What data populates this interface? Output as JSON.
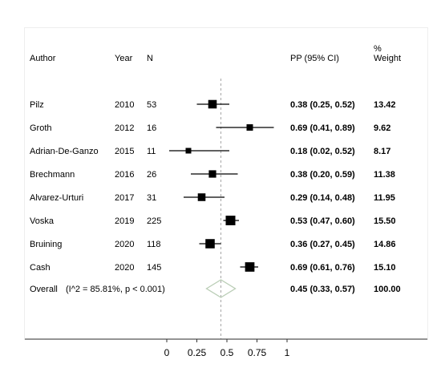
{
  "columns": {
    "author": "Author",
    "year": "Year",
    "n": "N",
    "pp": "PP (95% CI)",
    "weight_line1": "%",
    "weight_line2": "Weight"
  },
  "chart_data": {
    "type": "forest",
    "title": "",
    "xlabel": "",
    "ylabel": "",
    "xlim": [
      0,
      1
    ],
    "x_ticks": [
      "0",
      "0.25",
      "0.5",
      "0.75",
      "1"
    ],
    "x_tick_values": [
      0,
      0.25,
      0.5,
      0.75,
      1
    ],
    "reference_line": 0.45,
    "studies": [
      {
        "author": "Pilz",
        "year": "2010",
        "n": "53",
        "pp": 0.38,
        "lo": 0.25,
        "hi": 0.52,
        "ci_text": "0.38 (0.25, 0.52)",
        "weight": "13.42"
      },
      {
        "author": "Groth",
        "year": "2012",
        "n": "16",
        "pp": 0.69,
        "lo": 0.41,
        "hi": 0.89,
        "ci_text": "0.69 (0.41, 0.89)",
        "weight": "9.62"
      },
      {
        "author": "Adrian-De-Ganzo",
        "year": "2015",
        "n": "11",
        "pp": 0.18,
        "lo": 0.02,
        "hi": 0.52,
        "ci_text": "0.18 (0.02, 0.52)",
        "weight": "8.17"
      },
      {
        "author": "Brechmann",
        "year": "2016",
        "n": "26",
        "pp": 0.38,
        "lo": 0.2,
        "hi": 0.59,
        "ci_text": "0.38 (0.20, 0.59)",
        "weight": "11.38"
      },
      {
        "author": "Alvarez-Urturi",
        "year": "2017",
        "n": "31",
        "pp": 0.29,
        "lo": 0.14,
        "hi": 0.48,
        "ci_text": "0.29 (0.14, 0.48)",
        "weight": "11.95"
      },
      {
        "author": "Voska",
        "year": "2019",
        "n": "225",
        "pp": 0.53,
        "lo": 0.47,
        "hi": 0.6,
        "ci_text": "0.53 (0.47, 0.60)",
        "weight": "15.50"
      },
      {
        "author": "Bruining",
        "year": "2020",
        "n": "118",
        "pp": 0.36,
        "lo": 0.27,
        "hi": 0.45,
        "ci_text": "0.36 (0.27, 0.45)",
        "weight": "14.86"
      },
      {
        "author": "Cash",
        "year": "2020",
        "n": "145",
        "pp": 0.69,
        "lo": 0.61,
        "hi": 0.76,
        "ci_text": "0.69 (0.61, 0.76)",
        "weight": "15.10"
      }
    ],
    "overall": {
      "label": "Overall",
      "stats": "(I^2 = 85.81%, p < 0.001)",
      "pp": 0.45,
      "lo": 0.33,
      "hi": 0.57,
      "ci_text": "0.45 (0.33, 0.57)",
      "weight": "100.00"
    },
    "colors": {
      "marker": "#000000",
      "ci_line": "#000000",
      "reference_line": "#a6a6a6",
      "diamond": "#b9cdb5",
      "axis": "#333333"
    }
  }
}
